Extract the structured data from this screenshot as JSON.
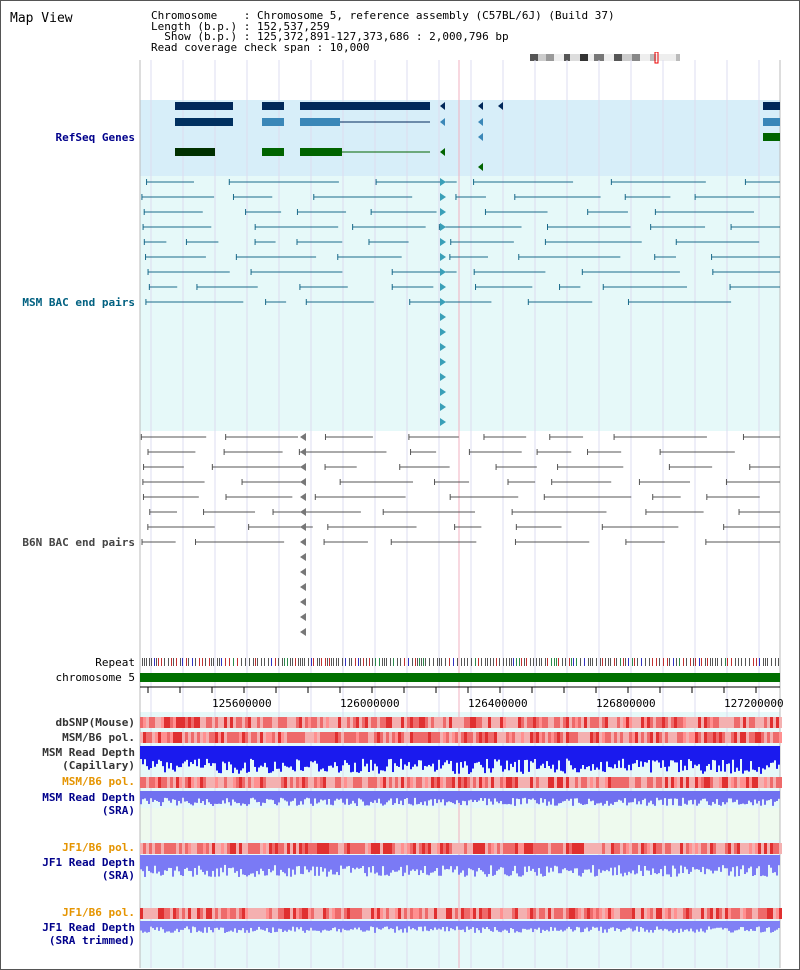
{
  "view": {
    "title": "Map View",
    "info_lines": [
      "Chromosome    : Chromosome 5, reference assembly (C57BL/6J) (Build 37)",
      "Length (b.p.) : 152,537,259",
      "  Show (b.p.) : 125,372,891-127,373,686 : 2,000,796 bp",
      "Read coverage check span : 10,000"
    ]
  },
  "tracks": {
    "refseq": "RefSeq Genes",
    "msm_bac": "MSM BAC end pairs",
    "b6n_bac": "B6N BAC end pairs",
    "repeat": "Repeat",
    "chrom": "chromosome 5",
    "dbsnp": "dbSNP(Mouse)",
    "msm_b6_pol_1": "MSM/B6 pol.",
    "msm_depth_cap_1": "MSM Read Depth",
    "msm_depth_cap_2": "(Capillary)",
    "msm_b6_pol_2": "MSM/B6 pol.",
    "msm_depth_sra_1": "MSM Read Depth",
    "msm_depth_sra_2": "(SRA)",
    "jf1_b6_pol_1": "JF1/B6 pol.",
    "jf1_depth_1": "JF1 Read Depth",
    "jf1_depth_2": "(SRA)",
    "jf1_b6_pol_2": "JF1/B6 pol.",
    "jf1_depth_trim_1": "JF1 Read Depth",
    "jf1_depth_trim_2": "(SRA trimmed)"
  },
  "axis": {
    "ticks": [
      "125600000",
      "126000000",
      "126400000",
      "126800000",
      "127200000"
    ]
  },
  "colors": {
    "refseq_bg": "#d7eef9",
    "msm_bg": "#e6f9f9",
    "gene_dark": "#00285a",
    "gene_green": "#006400",
    "chrom_bar": "#007000",
    "label_blue": "#00008b",
    "label_orange": "#e59400"
  }
}
